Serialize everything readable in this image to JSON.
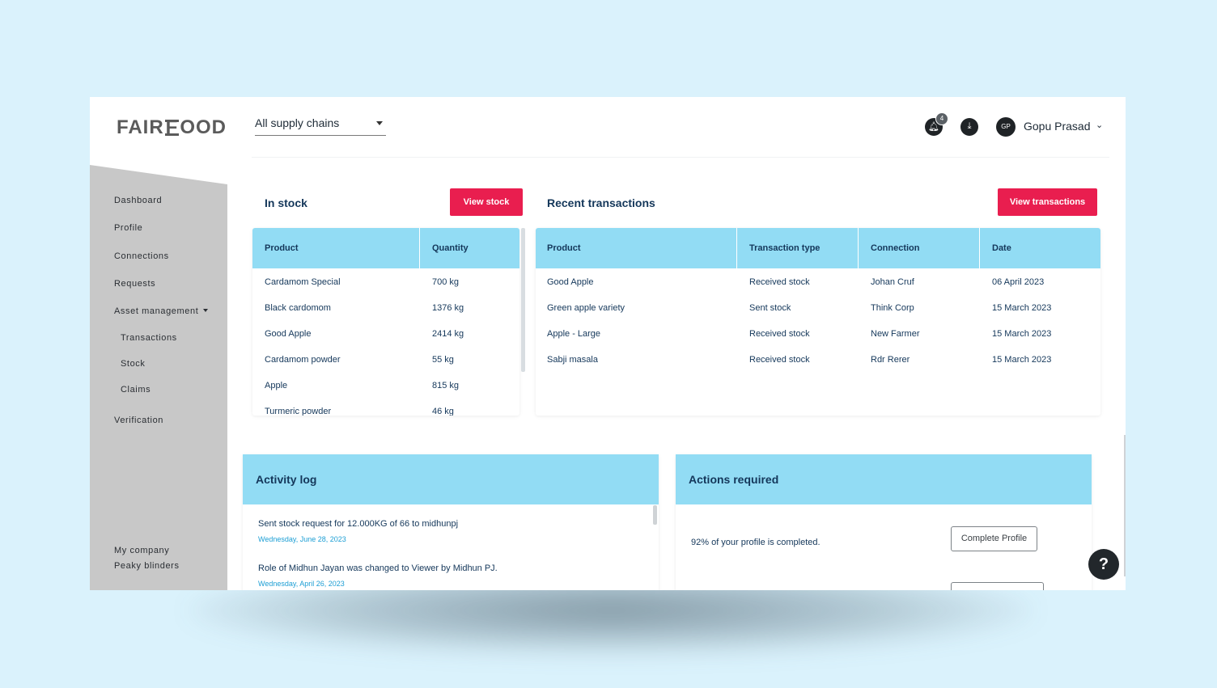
{
  "header": {
    "logo_text": "FAIRFOOD",
    "supply_chain_select": "All supply chains",
    "notification_count": "4",
    "user_initials": "GP",
    "user_name": "Gopu Prasad"
  },
  "sidebar": {
    "items": [
      "Dashboard",
      "Profile",
      "Connections",
      "Requests",
      "Asset management"
    ],
    "asset_sub_items": [
      "Transactions",
      "Stock",
      "Claims"
    ],
    "verification": "Verification",
    "company_label": "My company",
    "company_name": "Peaky blinders"
  },
  "in_stock": {
    "title": "In stock",
    "button": "View stock",
    "columns": [
      "Product",
      "Quantity"
    ],
    "rows": [
      [
        "Cardamom Special",
        "700 kg"
      ],
      [
        "Black cardomom",
        "1376 kg"
      ],
      [
        "Good Apple",
        "2414 kg"
      ],
      [
        "Cardamom powder",
        "55 kg"
      ],
      [
        "Apple",
        "815 kg"
      ],
      [
        "Turmeric powder",
        "46 kg"
      ]
    ]
  },
  "transactions": {
    "title": "Recent transactions",
    "button": "View transactions",
    "columns": [
      "Product",
      "Transaction type",
      "Connection",
      "Date"
    ],
    "rows": [
      [
        "Good Apple",
        "Received stock",
        "Johan Cruf",
        "06 April 2023"
      ],
      [
        "Green apple variety",
        "Sent stock",
        "Think Corp",
        "15 March 2023"
      ],
      [
        "Apple - Large",
        "Received stock",
        "New Farmer",
        "15 March 2023"
      ],
      [
        "Sabji masala",
        "Received stock",
        "Rdr Rerer",
        "15 March 2023"
      ]
    ]
  },
  "activity_log": {
    "title": "Activity log",
    "entries": [
      {
        "text": "Sent stock request for 12.000KG of 66 to midhunpj",
        "date": "Wednesday, June 28, 2023"
      },
      {
        "text": "Role of Midhun Jayan was changed to Viewer by Midhun PJ.",
        "date": "Wednesday, April 26, 2023"
      }
    ]
  },
  "actions_required": {
    "title": "Actions required",
    "items": [
      {
        "text": "92% of your profile is completed.",
        "button": "Complete Profile"
      }
    ]
  },
  "help_label": "?",
  "colors": {
    "accent": "#e91e4f",
    "table_header": "#92dcf4",
    "page_background": "#daf2fc",
    "sidebar": "#c8c8c8"
  }
}
